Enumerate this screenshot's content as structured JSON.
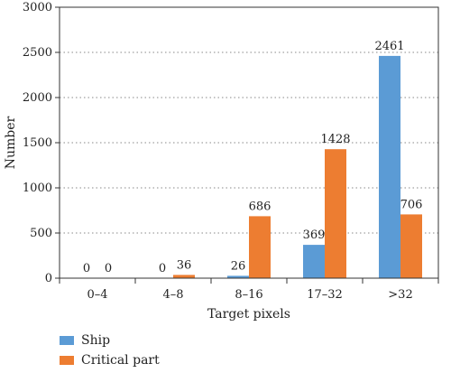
{
  "chart_data": {
    "type": "bar",
    "categories": [
      "0–4",
      "4–8",
      "8–16",
      "17–32",
      ">32"
    ],
    "series": [
      {
        "name": "Ship",
        "values": [
          0,
          0,
          26,
          369,
          2461
        ],
        "color": "#5b9bd5"
      },
      {
        "name": "Critical part",
        "values": [
          0,
          36,
          686,
          1428,
          706
        ],
        "color": "#ed7d31"
      }
    ],
    "xlabel": "Target pixels",
    "ylabel": "Number",
    "ylim": [
      0,
      3000
    ],
    "yticks": [
      0,
      500,
      1000,
      1500,
      2000,
      2500,
      3000
    ],
    "grid": "horizontal dotted",
    "legend_position": "bottom-left"
  }
}
